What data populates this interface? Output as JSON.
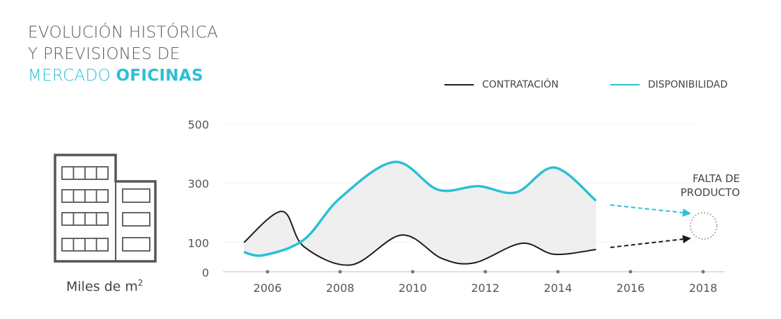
{
  "title": {
    "line1": "EVOLUCIÓN HISTÓRICA",
    "line2": "Y PREVISIONES DE",
    "line3_light": "MERCADO",
    "line3_bold": "OFICINAS"
  },
  "unit": {
    "text": "Miles de m",
    "sup": "2"
  },
  "icon": "office-building-icon",
  "annotation": {
    "line1": "FALTA DE",
    "line2": "PRODUCTO"
  },
  "colors": {
    "contratacion": "#1a1a1a",
    "disponibilidad": "#2bbfd6",
    "fill": "#efefef",
    "accent": "#2bbfd6"
  },
  "chart_data": {
    "type": "line",
    "title": "",
    "xlabel": "",
    "ylabel": "Miles de m2",
    "x_ticks": [
      "2006",
      "2008",
      "2010",
      "2012",
      "2014",
      "2016",
      "2018"
    ],
    "y_ticks": [
      "0",
      "100",
      "300",
      "500"
    ],
    "ylim": [
      0,
      500
    ],
    "xlim": [
      2005,
      2018.5
    ],
    "legend_position": "top-right",
    "grid": true,
    "series": [
      {
        "name": "CONTRATACIÓN",
        "x": [
          2005.35,
          2006.4,
          2007,
          2008.3,
          2009.7,
          2010.8,
          2011.7,
          2013,
          2013.9,
          2015.05
        ],
        "y": [
          99,
          204,
          85,
          23,
          124,
          45,
          30,
          96,
          59,
          75
        ]
      },
      {
        "name": "DISPONIBILIDAD",
        "x": [
          2005.35,
          2005.9,
          2007,
          2008,
          2009.5,
          2010.7,
          2011.8,
          2012.85,
          2013.9,
          2015.05
        ],
        "y": [
          66,
          56,
          108,
          249,
          371,
          277,
          289,
          268,
          352,
          240
        ]
      }
    ],
    "area_between_series": true,
    "projection": "dashed arrows 2015–2018 converging to FALTA DE PRODUCTO"
  }
}
